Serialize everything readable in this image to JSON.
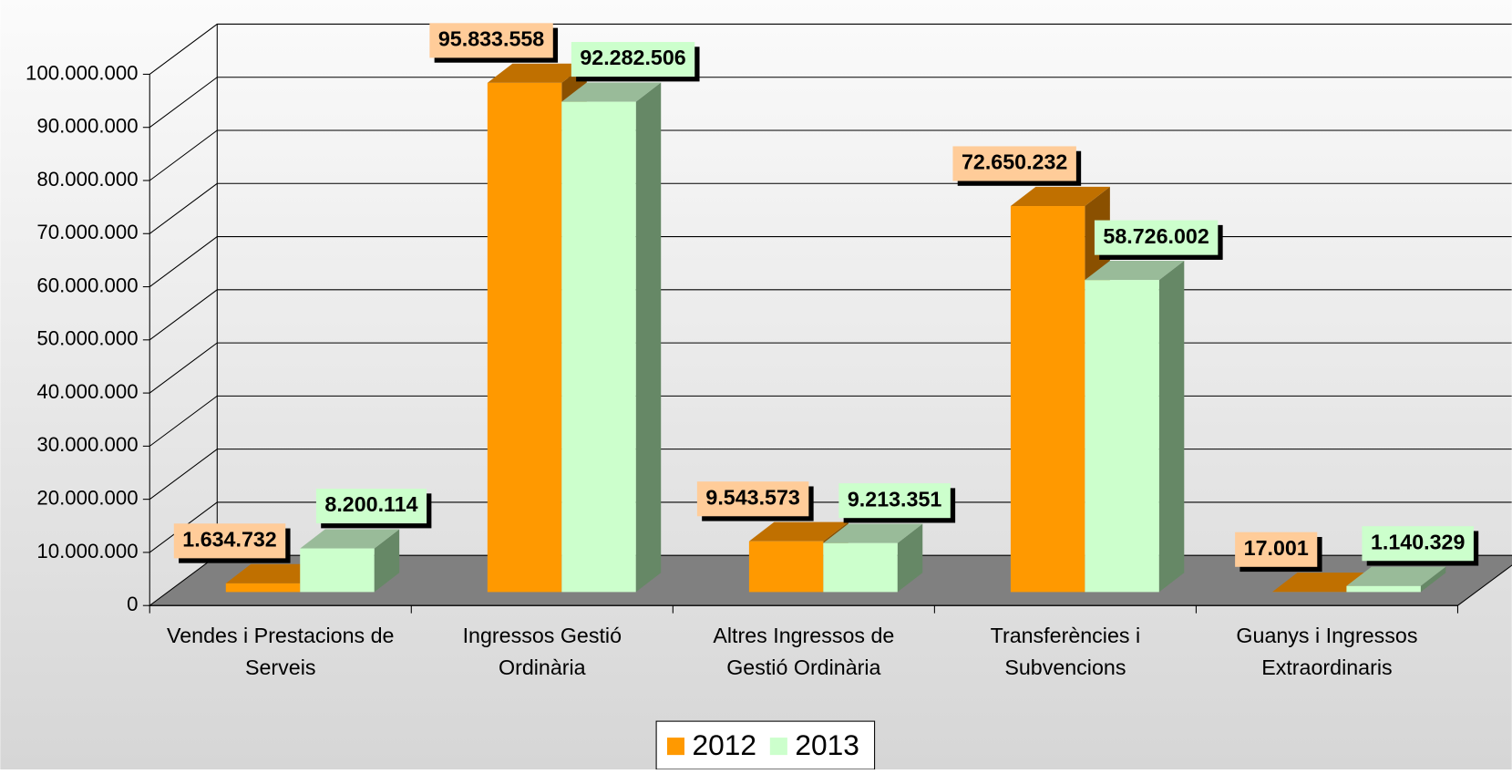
{
  "chart_data": {
    "type": "bar3d",
    "categories": [
      "Vendes i Prestacions de Serveis",
      "Ingressos Gestió Ordinària",
      "Altres Ingressos de Gestió Ordinària",
      "Transferències i Subvencions",
      "Guanys i Ingressos Extraordinaris"
    ],
    "series": [
      {
        "name": "2012",
        "color": "#ff9900",
        "label_color": "#ffcc99",
        "values": [
          1634732,
          95833558,
          9543573,
          72650232,
          17001
        ],
        "value_labels": [
          "1.634.732",
          "95.833.558",
          "9.543.573",
          "72.650.232",
          "17.001"
        ]
      },
      {
        "name": "2013",
        "color": "#ccffcc",
        "label_color": "#ccffcc",
        "values": [
          8200114,
          92282506,
          9213351,
          58726002,
          1140329
        ],
        "value_labels": [
          "8.200.114",
          "92.282.506",
          "9.213.351",
          "58.726.002",
          "1.140.329"
        ]
      }
    ],
    "ylim": [
      0,
      100000000
    ],
    "yticks": [
      0,
      {
        "value": 10000000,
        "label": "10.000.000"
      },
      {
        "value": 20000000,
        "label": "20.000.000"
      },
      {
        "value": 30000000,
        "label": "30.000.000"
      },
      {
        "value": 40000000,
        "label": "40.000.000"
      },
      {
        "value": 50000000,
        "label": "50.000.000"
      },
      {
        "value": 60000000,
        "label": "60.000.000"
      },
      {
        "value": 70000000,
        "label": "70.000.000"
      },
      {
        "value": 80000000,
        "label": "80.000.000"
      },
      {
        "value": 90000000,
        "label": "90.000.000"
      },
      {
        "value": 100000000,
        "label": "100.000.000"
      }
    ],
    "grid": true,
    "legend": "bottom"
  }
}
